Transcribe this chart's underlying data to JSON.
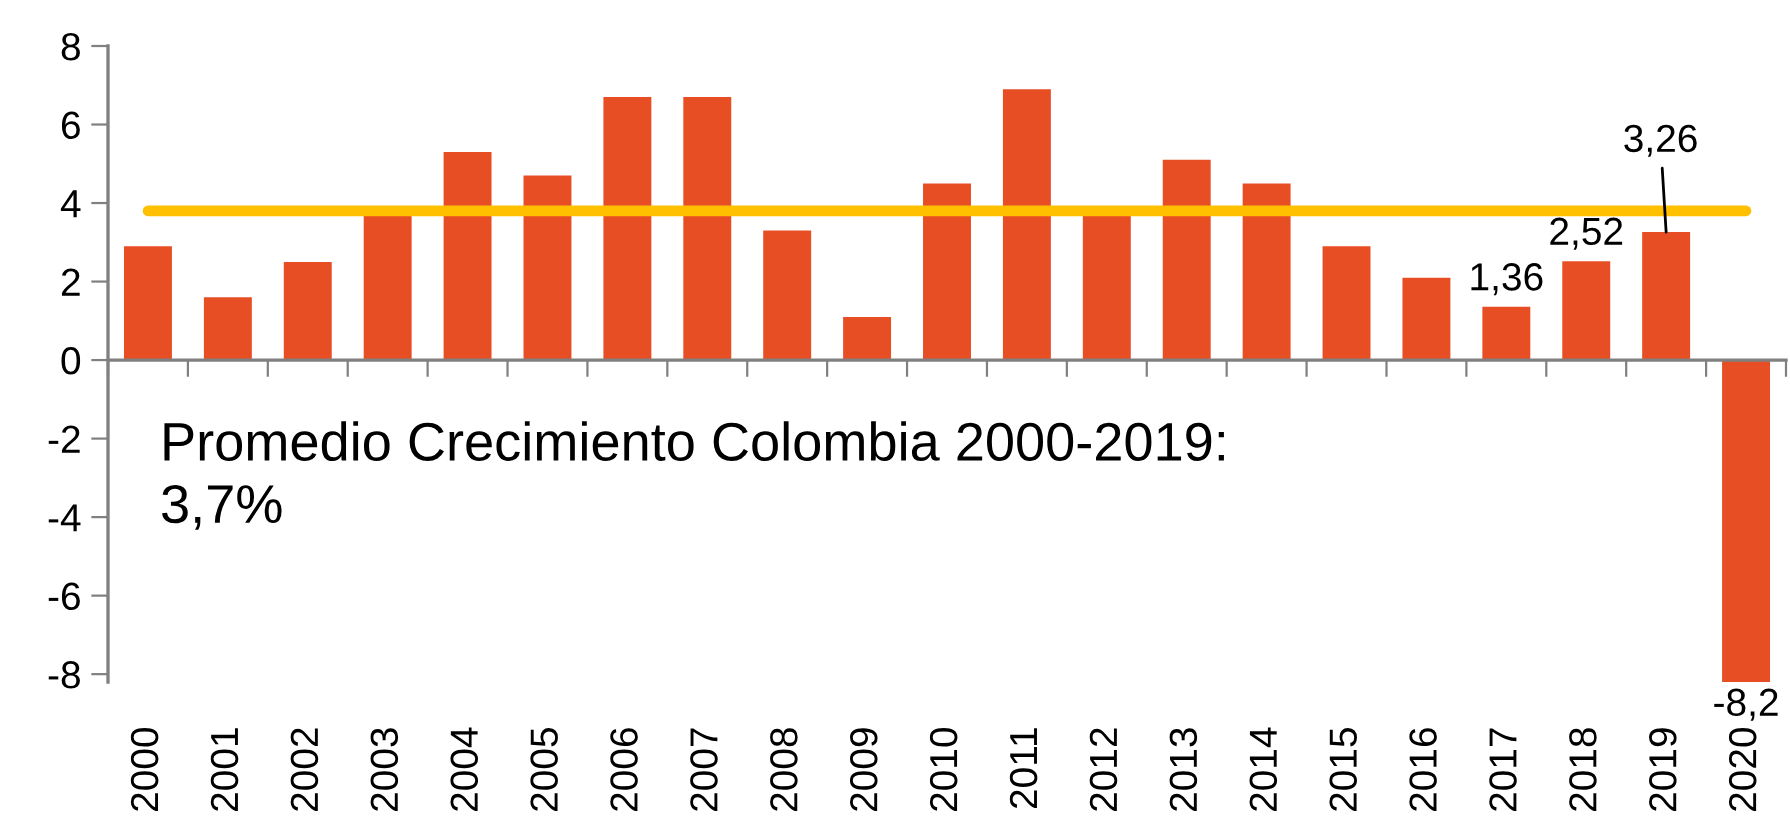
{
  "chart_data": {
    "type": "bar",
    "categories": [
      "2000",
      "2001",
      "2002",
      "2003",
      "2004",
      "2005",
      "2006",
      "2007",
      "2008",
      "2009",
      "2010",
      "2011",
      "2012",
      "2013",
      "2014",
      "2015",
      "2016",
      "2017",
      "2018",
      "2019",
      "2020"
    ],
    "series": [
      {
        "color": "#e84e24",
        "values": [
          2.9,
          1.6,
          2.5,
          3.8,
          5.3,
          4.7,
          6.7,
          6.7,
          3.3,
          1.1,
          4.5,
          6.9,
          3.8,
          5.1,
          4.5,
          2.9,
          2.1,
          1.36,
          2.52,
          3.26,
          -8.2
        ],
        "value_labels": [
          null,
          null,
          null,
          null,
          null,
          null,
          null,
          null,
          null,
          null,
          null,
          null,
          null,
          null,
          null,
          null,
          null,
          "1,36",
          "2,52",
          "3,26",
          "-8,2"
        ]
      },
      {
        "type": "line",
        "color": "#ffc000",
        "line_style": "solid",
        "values": [
          3.8,
          3.8,
          3.8,
          3.8,
          3.8,
          3.8,
          3.8,
          3.8,
          3.8,
          3.8,
          3.8,
          3.8,
          3.8,
          3.8,
          3.8,
          3.8,
          3.8,
          3.8,
          3.8,
          3.8,
          3.8
        ]
      }
    ],
    "ylim": [
      -8.2,
      8
    ],
    "yticks": [
      -8,
      -6,
      -4,
      -2,
      0,
      2,
      4,
      6,
      8
    ],
    "annotations": [
      "Promedio Crecimiento Colombia 2000-2019:\n3,7%"
    ]
  }
}
